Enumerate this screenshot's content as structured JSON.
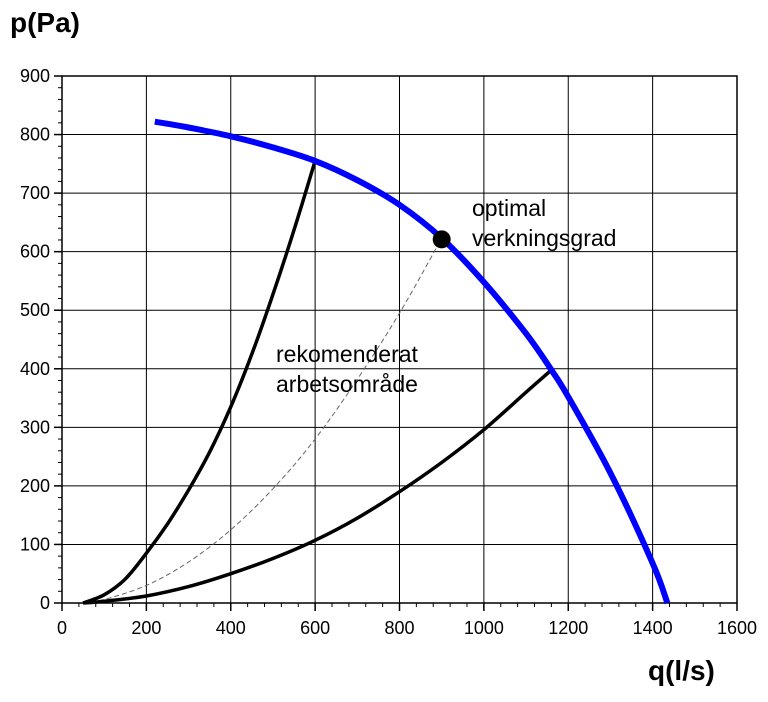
{
  "chart_data": {
    "type": "line",
    "title": "",
    "xlabel": "q(l/s)",
    "ylabel": "p(Pa)",
    "xlim": [
      0,
      1600
    ],
    "ylim": [
      0,
      900
    ],
    "xticks": [
      "0",
      "200",
      "400",
      "600",
      "800",
      "1000",
      "1200",
      "1400",
      "1600"
    ],
    "yticks": [
      "0",
      "100",
      "200",
      "300",
      "400",
      "500",
      "600",
      "700",
      "800",
      "900"
    ],
    "grid": true,
    "colors": {
      "fan_curve": "#0000ff",
      "system_curves": "#000000",
      "optimal_curve": "#666666",
      "grid": "#000000",
      "point": "#000000"
    },
    "series": [
      {
        "style": "fan-curve",
        "x": [
          220,
          300,
          400,
          500,
          600,
          700,
          800,
          900,
          1000,
          1100,
          1160,
          1200,
          1300,
          1400,
          1435
        ],
        "y": [
          822,
          812,
          797,
          778,
          755,
          722,
          680,
          623,
          548,
          460,
          398,
          352,
          222,
          68,
          0
        ]
      },
      {
        "style": "system-upper",
        "x": [
          50,
          100,
          150,
          200,
          250,
          300,
          350,
          400,
          450,
          500,
          550,
          600
        ],
        "y": [
          0,
          14,
          41,
          85,
          135,
          193,
          258,
          335,
          425,
          527,
          637,
          755
        ]
      },
      {
        "style": "system-lower",
        "x": [
          50,
          100,
          200,
          300,
          400,
          500,
          600,
          700,
          800,
          900,
          1000,
          1100,
          1160
        ],
        "y": [
          0,
          3,
          12,
          28,
          50,
          76,
          107,
          145,
          190,
          240,
          296,
          360,
          398
        ]
      },
      {
        "style": "optimal-dashed",
        "x": [
          50,
          100,
          200,
          300,
          400,
          500,
          600,
          700,
          800,
          900
        ],
        "y": [
          0,
          6,
          30,
          70,
          125,
          195,
          280,
          382,
          495,
          623
        ]
      }
    ],
    "optimal_point": {
      "x": 900,
      "y": 621,
      "label_line1": "optimal",
      "label_line2": "verkningsgrad"
    },
    "work_area_label": {
      "line1": "rekomenderat",
      "line2": "arbetsområde"
    }
  }
}
